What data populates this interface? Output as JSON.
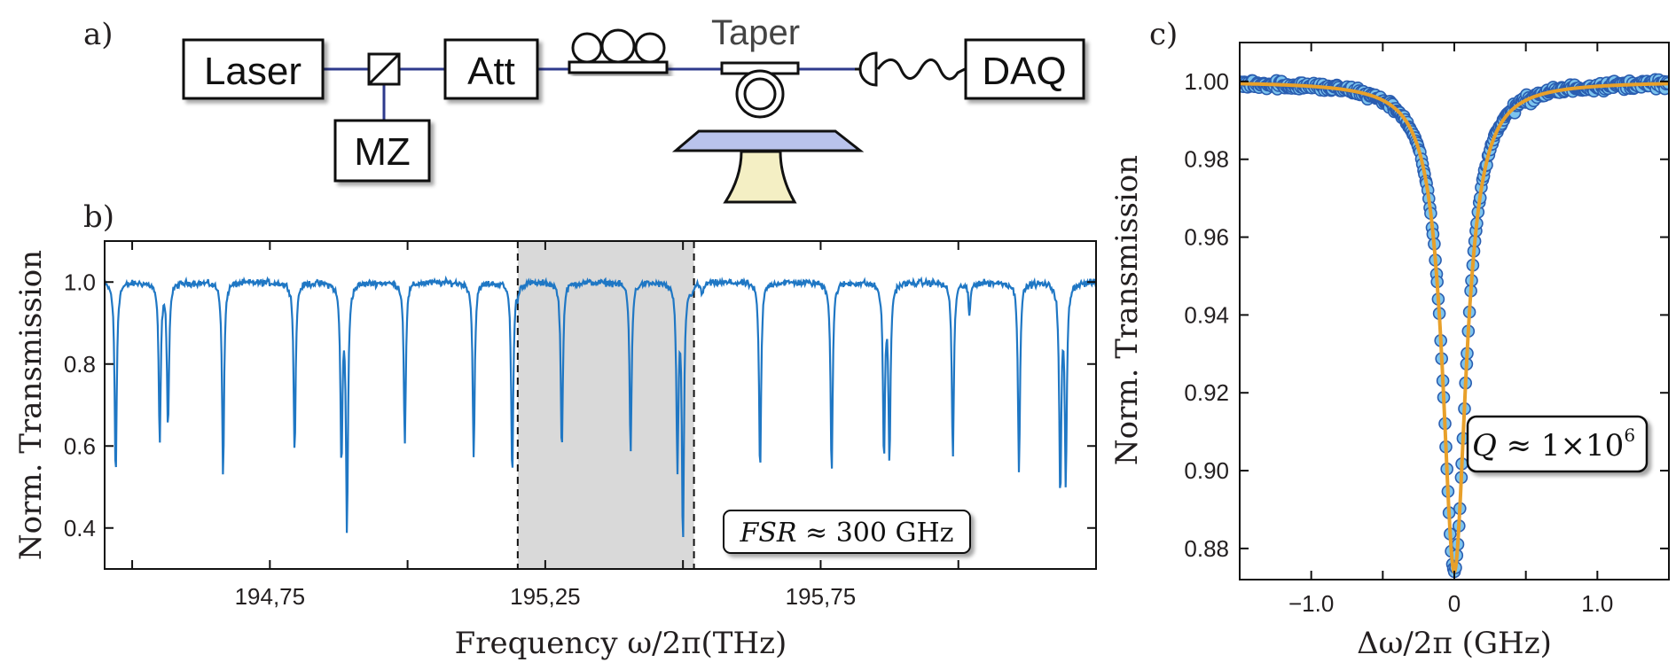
{
  "panels": {
    "a": "a)",
    "b": "b)",
    "c": "c)"
  },
  "setup": {
    "laser": "Laser",
    "mz": "MZ",
    "att": "Att",
    "taper": "Taper",
    "daq": "DAQ"
  },
  "colors": {
    "spectrum_line": "#1f77c4",
    "fit_line": "#e8a02a",
    "marker_fill": "#7cc4ee",
    "marker_edge": "#2a5db0",
    "highlight": "#d9d9d9",
    "fiber": "#2e3a8c",
    "stage_top": "#b9c3ec",
    "stage_base": "#f4efc4"
  },
  "chart_data": [
    {
      "id": "b",
      "type": "line",
      "xlabel": "Frequency ω/2π(THz)",
      "ylabel": "Norm.  Transmission",
      "xlim": [
        194.45,
        196.25
      ],
      "ylim": [
        0.3,
        1.1
      ],
      "xticks": [
        194.75,
        195.25,
        195.75
      ],
      "xtick_labels": [
        "194,75",
        "195,25",
        "195,75"
      ],
      "yticks": [
        0.4,
        0.6,
        0.8,
        1.0
      ],
      "ytick_labels": [
        "0.4",
        "0.6",
        "0.8",
        "1.0"
      ],
      "baseline": 1.0,
      "shaded_region": [
        195.2,
        195.52
      ],
      "annotation": {
        "prefix": "FSR",
        "text": " ≈ 300 GHz"
      },
      "dips": [
        {
          "x": 194.47,
          "y": 0.52
        },
        {
          "x": 194.55,
          "y": 0.61
        },
        {
          "x": 194.565,
          "y": 0.65
        },
        {
          "x": 194.665,
          "y": 0.53
        },
        {
          "x": 194.795,
          "y": 0.58
        },
        {
          "x": 194.88,
          "y": 0.57
        },
        {
          "x": 194.89,
          "y": 0.4
        },
        {
          "x": 194.995,
          "y": 0.61
        },
        {
          "x": 195.12,
          "y": 0.57
        },
        {
          "x": 195.19,
          "y": 0.52
        },
        {
          "x": 195.2,
          "y": 0.98
        },
        {
          "x": 195.28,
          "y": 0.58
        },
        {
          "x": 195.405,
          "y": 0.58
        },
        {
          "x": 195.49,
          "y": 0.56
        },
        {
          "x": 195.5,
          "y": 0.37
        },
        {
          "x": 195.515,
          "y": 0.98
        },
        {
          "x": 195.535,
          "y": 0.97
        },
        {
          "x": 195.64,
          "y": 0.53
        },
        {
          "x": 195.77,
          "y": 0.53
        },
        {
          "x": 195.865,
          "y": 0.58
        },
        {
          "x": 195.875,
          "y": 0.57
        },
        {
          "x": 195.99,
          "y": 0.57
        },
        {
          "x": 196.02,
          "y": 0.92
        },
        {
          "x": 196.11,
          "y": 0.54
        },
        {
          "x": 196.185,
          "y": 0.48
        },
        {
          "x": 196.195,
          "y": 0.52
        }
      ]
    },
    {
      "id": "c",
      "type": "scatter",
      "xlabel": "Δω/2π (GHz)",
      "ylabel": "Norm.  Transmission",
      "xlim": [
        -1.5,
        1.5
      ],
      "ylim": [
        0.872,
        1.01
      ],
      "xticks": [
        -1.0,
        0,
        1.0
      ],
      "xtick_labels": [
        "−1.0",
        "0",
        "1.0"
      ],
      "yticks": [
        0.88,
        0.9,
        0.92,
        0.94,
        0.96,
        0.98,
        1.0
      ],
      "ytick_labels": [
        "0.88",
        "0.90",
        "0.92",
        "0.94",
        "0.96",
        "0.98",
        "1.00"
      ],
      "fit": {
        "depth": 0.126,
        "center": 0.0,
        "half_width": 0.1
      },
      "annotation": {
        "symbol": "Q",
        "text": " ≈ 1×10",
        "exponent": "6"
      },
      "point_count": 400
    }
  ]
}
